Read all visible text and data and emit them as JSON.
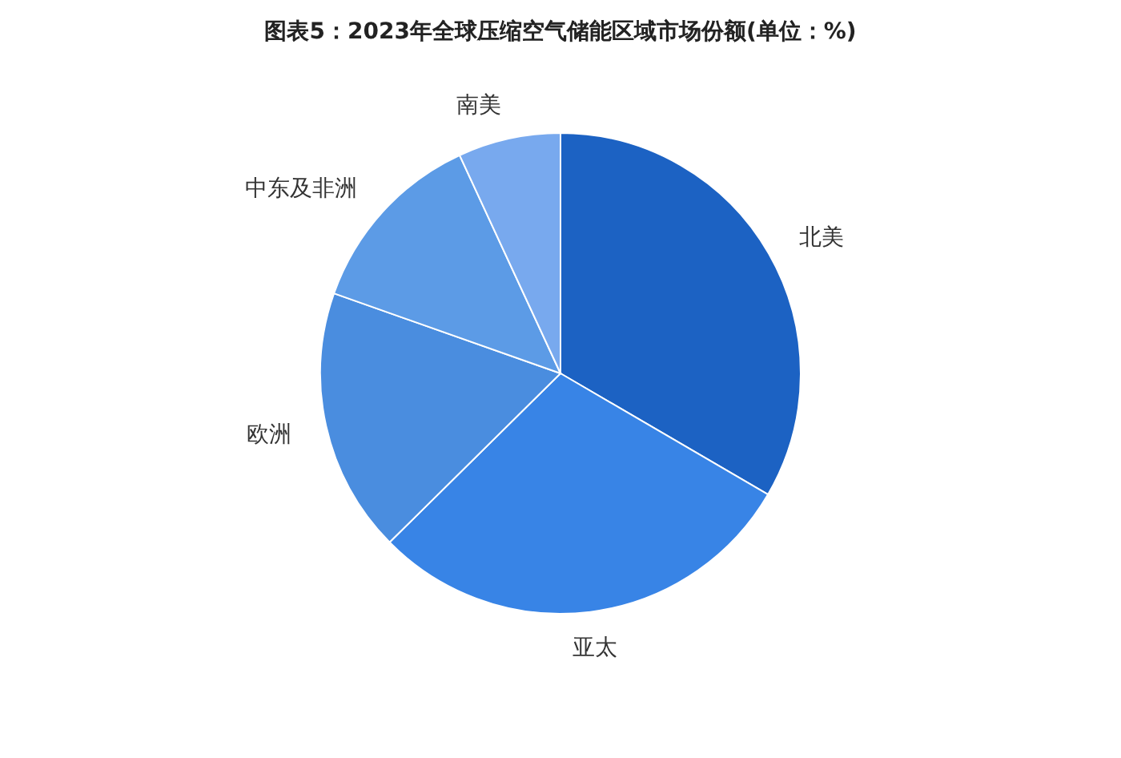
{
  "chart_data": {
    "type": "pie",
    "title": "图表5：2023年全球压缩空气储能区域市场份额(单位：%)",
    "categories": [
      "北美",
      "亚太",
      "欧洲",
      "中东及非洲",
      "南美"
    ],
    "values": [
      33.4,
      29.2,
      17.8,
      12.7,
      6.9
    ],
    "colors": [
      "#1c62c3",
      "#3884e6",
      "#4a8ddf",
      "#5c9be6",
      "#78a9ee"
    ]
  }
}
